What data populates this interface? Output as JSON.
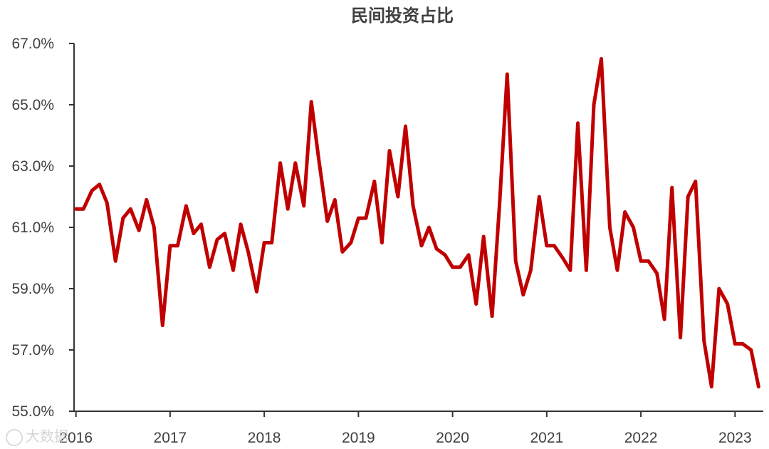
{
  "chart_data": {
    "type": "line",
    "title": "民间投资占比",
    "xlabel": "",
    "ylabel": "",
    "y_tick_labels": [
      "67.0%",
      "65.0%",
      "63.0%",
      "61.0%",
      "59.0%",
      "57.0%",
      "55.0%"
    ],
    "y_tick_values": [
      67,
      65,
      63,
      61,
      59,
      57,
      55
    ],
    "ylim": [
      55,
      67
    ],
    "x_tick_labels": [
      "2016",
      "2017",
      "2018",
      "2019",
      "2020",
      "2021",
      "2022",
      "2023"
    ],
    "x_tick_values": [
      2016,
      2017,
      2018,
      2019,
      2020,
      2021,
      2022,
      2023
    ],
    "xlim": [
      2015.98,
      2023.3
    ],
    "grid": false,
    "legend": "none",
    "series": [
      {
        "color": "#c00000",
        "x": [
          2016.0,
          2016.08,
          2016.17,
          2016.25,
          2016.33,
          2016.42,
          2016.5,
          2016.58,
          2016.67,
          2016.75,
          2016.83,
          2016.92,
          2017.0,
          2017.08,
          2017.17,
          2017.25,
          2017.33,
          2017.42,
          2017.5,
          2017.58,
          2017.67,
          2017.75,
          2017.83,
          2017.92,
          2018.0,
          2018.08,
          2018.17,
          2018.25,
          2018.33,
          2018.42,
          2018.5,
          2018.58,
          2018.67,
          2018.75,
          2018.83,
          2018.92,
          2019.0,
          2019.08,
          2019.17,
          2019.25,
          2019.33,
          2019.42,
          2019.5,
          2019.58,
          2019.67,
          2019.75,
          2019.83,
          2019.92,
          2020.0,
          2020.08,
          2020.17,
          2020.25,
          2020.33,
          2020.42,
          2020.5,
          2020.58,
          2020.67,
          2020.75,
          2020.83,
          2020.92,
          2021.0,
          2021.08,
          2021.17,
          2021.25,
          2021.33,
          2021.42,
          2021.5,
          2021.58,
          2021.67,
          2021.75,
          2021.83,
          2021.92,
          2022.0,
          2022.08,
          2022.17,
          2022.25,
          2022.33,
          2022.42,
          2022.5,
          2022.58,
          2022.67,
          2022.75,
          2022.83,
          2022.92,
          2023.0,
          2023.08,
          2023.17,
          2023.25
        ],
        "y": [
          61.6,
          61.6,
          62.2,
          62.4,
          61.8,
          59.9,
          61.3,
          61.6,
          60.9,
          61.9,
          61.0,
          57.8,
          60.4,
          60.4,
          61.7,
          60.8,
          61.1,
          59.7,
          60.6,
          60.8,
          59.6,
          61.1,
          60.2,
          58.9,
          60.5,
          60.5,
          63.1,
          61.6,
          63.1,
          61.7,
          65.1,
          63.2,
          61.2,
          61.9,
          60.2,
          60.5,
          61.3,
          61.3,
          62.5,
          60.5,
          63.5,
          62.0,
          64.3,
          61.7,
          60.4,
          61.0,
          60.3,
          60.1,
          59.7,
          59.7,
          60.1,
          58.5,
          60.7,
          58.1,
          61.8,
          66.0,
          59.9,
          58.8,
          59.6,
          62.0,
          60.4,
          60.4,
          60.0,
          59.6,
          64.4,
          59.6,
          65.0,
          66.5,
          61.0,
          59.6,
          61.5,
          61.0,
          59.9,
          59.9,
          59.5,
          58.0,
          62.3,
          57.4,
          62.0,
          62.5,
          57.3,
          55.8,
          59.0,
          58.5,
          57.2,
          57.2,
          57.0,
          55.8
        ]
      }
    ]
  },
  "watermark": {
    "text": "大数据"
  }
}
